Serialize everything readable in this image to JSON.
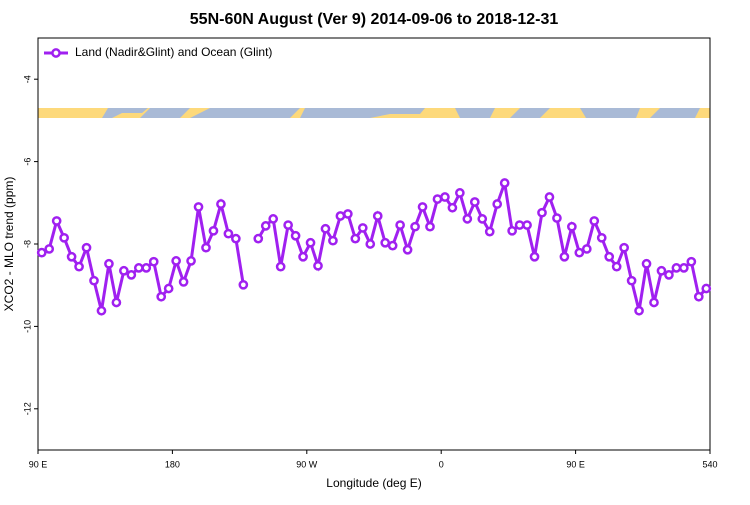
{
  "chart_data": {
    "type": "line",
    "title": "55N-60N August (Ver 9)   2014-09-06 to 2018-12-31",
    "x_label": "Longitude (deg E)",
    "y_label": "XCO2 - MLO trend (ppm)",
    "xlim": [
      90,
      540
    ],
    "xticks": [
      {
        "value": 90,
        "label": "90 E"
      },
      180,
      {
        "value": 270,
        "label": "90 W"
      },
      {
        "value": 360,
        "label": "0"
      },
      {
        "value": 450,
        "label": "90 E"
      },
      540
    ],
    "ylim": [
      -13,
      -3
    ],
    "yticks": [
      -4,
      -6,
      -8,
      -10,
      -12
    ],
    "legend": "top-left",
    "x": [
      92.5,
      97.5,
      102.5,
      107.5,
      112.5,
      117.5,
      122.5,
      127.5,
      132.5,
      137.5,
      142.5,
      147.5,
      152.5,
      157.5,
      162.5,
      167.5,
      172.5,
      177.5,
      182.5,
      187.5,
      192.5,
      197.5,
      202.5,
      207.5,
      212.5,
      217.5,
      222.5,
      227.5,
      232.5,
      237.5,
      242.5,
      247.5,
      252.5,
      257.5,
      262.5,
      267.5,
      272.5,
      277.5,
      282.5,
      287.5,
      292.5,
      297.5,
      302.5,
      307.5,
      312.5,
      317.5,
      322.5,
      327.5,
      332.5,
      337.5,
      342.5,
      347.5,
      352.5,
      357.5,
      362.5,
      367.5,
      372.5,
      377.5,
      382.5,
      387.5,
      392.5,
      397.5,
      402.5,
      407.5,
      412.5,
      417.5,
      422.5,
      427.5,
      432.5,
      437.5,
      442.5,
      447.5,
      452.5,
      457.5,
      462.5,
      467.5,
      472.5,
      477.5,
      482.5,
      487.5,
      492.5,
      497.5,
      502.5,
      507.5,
      512.5,
      517.5,
      522.5,
      527.5,
      532.5,
      537.5
    ],
    "series": [
      {
        "name": "Land (Nadir&Glint) and Ocean (Glint)",
        "color": "#a020f0",
        "values": [
          -8.21,
          -8.12,
          -7.44,
          -7.85,
          -8.31,
          -8.55,
          -8.09,
          -8.89,
          -9.62,
          -8.48,
          -9.42,
          -8.65,
          -8.75,
          -8.58,
          -8.58,
          -8.43,
          -9.28,
          -9.08,
          -8.41,
          -8.92,
          -8.41,
          -7.1,
          -8.09,
          -7.68,
          -7.03,
          -7.75,
          -7.87,
          -8.99,
          null,
          -7.87,
          -7.56,
          -7.39,
          -8.55,
          -7.54,
          -7.8,
          -8.31,
          -7.97,
          -8.53,
          -7.63,
          -7.92,
          -7.32,
          -7.27,
          -7.87,
          -7.61,
          -8.0,
          -7.32,
          -7.97,
          -8.04,
          -7.54,
          -8.14,
          -7.58,
          -7.1,
          -7.58,
          -6.91,
          -6.86,
          -7.12,
          -6.76,
          -7.39,
          -6.98,
          -7.39,
          -7.7,
          -7.03,
          -6.52,
          -7.68,
          -7.54,
          -7.54,
          -8.31,
          -7.24,
          -6.86,
          -7.37,
          -8.31,
          -7.58,
          -8.21,
          -8.12,
          -7.44,
          -7.85,
          -8.31,
          -8.55,
          -8.09,
          -8.89,
          -9.62,
          -8.48,
          -9.42,
          -8.65,
          -8.75,
          -8.58,
          -8.58,
          -8.43,
          -9.28,
          -9.08
        ]
      }
    ]
  }
}
